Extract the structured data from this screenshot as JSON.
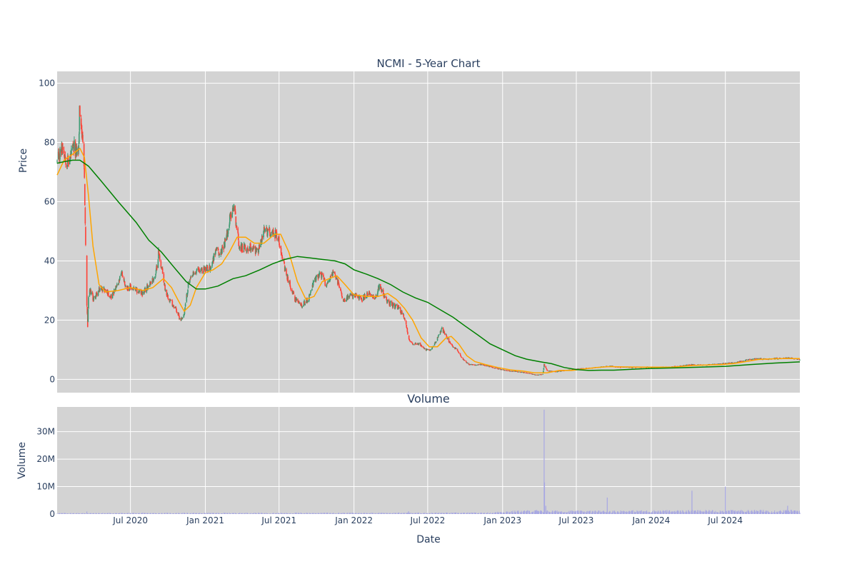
{
  "chart_data": [
    {
      "type": "candlestick",
      "title": "NCMI - 5-Year Chart",
      "xlabel": "",
      "ylabel": "Price",
      "ylim": [
        -4.5,
        104
      ],
      "xlim": [
        "2020-01-03",
        "2024-12-31"
      ],
      "yticks": [
        0,
        20,
        40,
        60,
        80,
        100
      ],
      "xticks": [
        "2020-07-01",
        "2021-01-01",
        "2021-07-01",
        "2022-01-01",
        "2022-07-01",
        "2023-01-01",
        "2023-07-01",
        "2024-01-01",
        "2024-07-01"
      ],
      "grid": true,
      "background": "#d3d3d3",
      "colors": {
        "up": "#3d9970",
        "down": "#ff4136",
        "ma_short": "#ffa500",
        "ma_long": "#008000"
      },
      "close_anchors": [
        [
          "2020-01-03",
          73
        ],
        [
          "2020-01-10",
          76
        ],
        [
          "2020-01-17",
          79
        ],
        [
          "2020-01-24",
          75
        ],
        [
          "2020-01-31",
          73
        ],
        [
          "2020-02-07",
          76
        ],
        [
          "2020-02-14",
          78
        ],
        [
          "2020-02-21",
          77
        ],
        [
          "2020-02-25",
          78
        ],
        [
          "2020-02-27",
          90
        ],
        [
          "2020-03-02",
          88
        ],
        [
          "2020-03-05",
          80
        ],
        [
          "2020-03-10",
          68
        ],
        [
          "2020-03-13",
          45
        ],
        [
          "2020-03-16",
          25
        ],
        [
          "2020-03-18",
          18
        ],
        [
          "2020-03-20",
          28
        ],
        [
          "2020-03-25",
          30
        ],
        [
          "2020-04-01",
          27
        ],
        [
          "2020-04-10",
          29
        ],
        [
          "2020-04-20",
          31
        ],
        [
          "2020-05-01",
          30
        ],
        [
          "2020-05-15",
          28
        ],
        [
          "2020-06-01",
          32
        ],
        [
          "2020-06-10",
          36
        ],
        [
          "2020-06-20",
          31
        ],
        [
          "2020-07-01",
          31
        ],
        [
          "2020-07-15",
          30
        ],
        [
          "2020-08-01",
          29
        ],
        [
          "2020-08-15",
          32
        ],
        [
          "2020-09-01",
          35
        ],
        [
          "2020-09-08",
          43
        ],
        [
          "2020-09-15",
          38
        ],
        [
          "2020-09-25",
          30
        ],
        [
          "2020-10-05",
          27
        ],
        [
          "2020-10-20",
          24
        ],
        [
          "2020-11-01",
          20
        ],
        [
          "2020-11-10",
          22
        ],
        [
          "2020-11-20",
          32
        ],
        [
          "2020-12-01",
          35
        ],
        [
          "2020-12-15",
          37
        ],
        [
          "2021-01-01",
          37
        ],
        [
          "2021-01-15",
          38
        ],
        [
          "2021-01-27",
          44
        ],
        [
          "2021-02-05",
          42
        ],
        [
          "2021-02-20",
          47
        ],
        [
          "2021-03-05",
          56
        ],
        [
          "2021-03-12",
          59
        ],
        [
          "2021-03-25",
          45
        ],
        [
          "2021-04-10",
          44
        ],
        [
          "2021-04-25",
          45
        ],
        [
          "2021-05-10",
          43
        ],
        [
          "2021-05-25",
          50
        ],
        [
          "2021-06-10",
          50
        ],
        [
          "2021-06-25",
          49
        ],
        [
          "2021-07-05",
          45
        ],
        [
          "2021-07-15",
          37
        ],
        [
          "2021-07-25",
          33
        ],
        [
          "2021-08-10",
          27
        ],
        [
          "2021-08-25",
          25
        ],
        [
          "2021-09-10",
          27
        ],
        [
          "2021-09-25",
          33
        ],
        [
          "2021-10-10",
          36
        ],
        [
          "2021-10-25",
          32
        ],
        [
          "2021-11-10",
          36
        ],
        [
          "2021-11-25",
          32
        ],
        [
          "2021-12-05",
          27
        ],
        [
          "2021-12-20",
          28
        ],
        [
          "2022-01-05",
          28
        ],
        [
          "2022-01-20",
          27
        ],
        [
          "2022-02-05",
          29
        ],
        [
          "2022-02-20",
          27
        ],
        [
          "2022-03-05",
          32
        ],
        [
          "2022-03-20",
          27
        ],
        [
          "2022-04-05",
          25
        ],
        [
          "2022-04-20",
          24
        ],
        [
          "2022-05-05",
          21
        ],
        [
          "2022-05-15",
          14
        ],
        [
          "2022-05-25",
          12
        ],
        [
          "2022-06-10",
          12
        ],
        [
          "2022-06-25",
          10
        ],
        [
          "2022-07-10",
          10
        ],
        [
          "2022-07-25",
          14
        ],
        [
          "2022-08-05",
          17
        ],
        [
          "2022-08-15",
          15
        ],
        [
          "2022-08-25",
          12
        ],
        [
          "2022-09-10",
          10
        ],
        [
          "2022-09-25",
          7
        ],
        [
          "2022-10-10",
          5
        ],
        [
          "2022-10-25",
          5
        ],
        [
          "2022-11-10",
          5
        ],
        [
          "2022-11-25",
          4.5
        ],
        [
          "2022-12-10",
          4
        ],
        [
          "2022-12-25",
          3.5
        ],
        [
          "2023-01-10",
          3
        ],
        [
          "2023-01-25",
          2.8
        ],
        [
          "2023-02-10",
          2.6
        ],
        [
          "2023-02-25",
          2.3
        ],
        [
          "2023-03-10",
          2
        ],
        [
          "2023-03-25",
          1.5
        ],
        [
          "2023-04-10",
          1.8
        ],
        [
          "2023-04-13",
          5
        ],
        [
          "2023-04-20",
          3
        ],
        [
          "2023-05-10",
          2.6
        ],
        [
          "2023-06-01",
          3
        ],
        [
          "2023-07-01",
          3.5
        ],
        [
          "2023-08-01",
          3.8
        ],
        [
          "2023-09-01",
          4.2
        ],
        [
          "2023-09-20",
          4.5
        ],
        [
          "2023-10-15",
          4.2
        ],
        [
          "2023-11-15",
          4.1
        ],
        [
          "2023-12-15",
          4.2
        ],
        [
          "2024-01-15",
          4.1
        ],
        [
          "2024-02-15",
          4.2
        ],
        [
          "2024-03-15",
          4.6
        ],
        [
          "2024-04-10",
          5
        ],
        [
          "2024-05-10",
          4.8
        ],
        [
          "2024-06-10",
          5.2
        ],
        [
          "2024-07-01",
          5.4
        ],
        [
          "2024-07-25",
          5.6
        ],
        [
          "2024-08-20",
          6.5
        ],
        [
          "2024-09-20",
          7
        ],
        [
          "2024-10-20",
          6.9
        ],
        [
          "2024-11-20",
          7.2
        ],
        [
          "2024-12-10",
          7.1
        ],
        [
          "2024-12-31",
          6.8
        ]
      ],
      "ma_short": [
        [
          "2020-01-03",
          69
        ],
        [
          "2020-01-20",
          74
        ],
        [
          "2020-02-10",
          76
        ],
        [
          "2020-02-28",
          78
        ],
        [
          "2020-03-10",
          75
        ],
        [
          "2020-03-20",
          62
        ],
        [
          "2020-03-31",
          45
        ],
        [
          "2020-04-15",
          32
        ],
        [
          "2020-05-01",
          29.5
        ],
        [
          "2020-06-01",
          30
        ],
        [
          "2020-07-01",
          31
        ],
        [
          "2020-08-01",
          30
        ],
        [
          "2020-08-25",
          31
        ],
        [
          "2020-09-20",
          34
        ],
        [
          "2020-10-10",
          31
        ],
        [
          "2020-10-25",
          27
        ],
        [
          "2020-11-10",
          23
        ],
        [
          "2020-11-25",
          25
        ],
        [
          "2020-12-10",
          31
        ],
        [
          "2021-01-01",
          36
        ],
        [
          "2021-01-20",
          37
        ],
        [
          "2021-02-10",
          39
        ],
        [
          "2021-03-01",
          43
        ],
        [
          "2021-03-20",
          48
        ],
        [
          "2021-04-10",
          48
        ],
        [
          "2021-05-01",
          46
        ],
        [
          "2021-05-25",
          46
        ],
        [
          "2021-06-20",
          49
        ],
        [
          "2021-07-05",
          49
        ],
        [
          "2021-07-25",
          43
        ],
        [
          "2021-08-15",
          33
        ],
        [
          "2021-09-05",
          27
        ],
        [
          "2021-09-25",
          28
        ],
        [
          "2021-10-15",
          33
        ],
        [
          "2021-11-01",
          34
        ],
        [
          "2021-11-20",
          35
        ],
        [
          "2021-12-10",
          32
        ],
        [
          "2022-01-01",
          28.5
        ],
        [
          "2022-02-01",
          28
        ],
        [
          "2022-03-01",
          28
        ],
        [
          "2022-03-25",
          29
        ],
        [
          "2022-04-15",
          27
        ],
        [
          "2022-05-05",
          24
        ],
        [
          "2022-05-25",
          20
        ],
        [
          "2022-06-15",
          14
        ],
        [
          "2022-07-05",
          11
        ],
        [
          "2022-07-25",
          11
        ],
        [
          "2022-08-15",
          14
        ],
        [
          "2022-08-28",
          14.5
        ],
        [
          "2022-09-15",
          12
        ],
        [
          "2022-10-05",
          8
        ],
        [
          "2022-10-25",
          6
        ],
        [
          "2022-11-20",
          5
        ],
        [
          "2022-12-20",
          4
        ],
        [
          "2023-01-20",
          3.2
        ],
        [
          "2023-02-20",
          2.8
        ],
        [
          "2023-03-20",
          2.2
        ],
        [
          "2023-04-20",
          2.2
        ],
        [
          "2023-05-20",
          3
        ],
        [
          "2023-06-20",
          3
        ],
        [
          "2023-07-20",
          3.5
        ],
        [
          "2023-08-20",
          4
        ],
        [
          "2023-09-20",
          4.3
        ],
        [
          "2023-10-20",
          4.2
        ],
        [
          "2023-12-20",
          4.1
        ],
        [
          "2024-02-20",
          4.1
        ],
        [
          "2024-04-20",
          4.7
        ],
        [
          "2024-06-20",
          5
        ],
        [
          "2024-07-20",
          5.3
        ],
        [
          "2024-08-20",
          6
        ],
        [
          "2024-09-20",
          6.7
        ],
        [
          "2024-10-20",
          6.9
        ],
        [
          "2024-11-20",
          7
        ],
        [
          "2024-12-31",
          7
        ]
      ],
      "ma_long": [
        [
          "2020-01-03",
          73
        ],
        [
          "2020-01-20",
          73.5
        ],
        [
          "2020-02-10",
          74
        ],
        [
          "2020-02-28",
          74
        ],
        [
          "2020-03-20",
          72
        ],
        [
          "2020-04-20",
          67
        ],
        [
          "2020-06-01",
          60
        ],
        [
          "2020-07-15",
          53
        ],
        [
          "2020-08-15",
          47
        ],
        [
          "2020-09-15",
          43
        ],
        [
          "2020-10-15",
          38
        ],
        [
          "2020-11-15",
          33
        ],
        [
          "2020-12-10",
          30.5
        ],
        [
          "2021-01-01",
          30.5
        ],
        [
          "2021-02-01",
          31.5
        ],
        [
          "2021-03-10",
          34
        ],
        [
          "2021-04-10",
          35
        ],
        [
          "2021-05-15",
          37
        ],
        [
          "2021-06-15",
          39
        ],
        [
          "2021-07-15",
          40.5
        ],
        [
          "2021-08-15",
          41.5
        ],
        [
          "2021-09-15",
          41
        ],
        [
          "2021-10-15",
          40.5
        ],
        [
          "2021-11-15",
          40
        ],
        [
          "2021-12-10",
          39
        ],
        [
          "2022-01-01",
          37
        ],
        [
          "2022-02-01",
          35.5
        ],
        [
          "2022-03-01",
          34
        ],
        [
          "2022-04-01",
          32
        ],
        [
          "2022-05-01",
          29.5
        ],
        [
          "2022-06-01",
          27.5
        ],
        [
          "2022-07-01",
          26
        ],
        [
          "2022-08-01",
          23.5
        ],
        [
          "2022-09-01",
          21
        ],
        [
          "2022-10-01",
          18
        ],
        [
          "2022-11-01",
          15
        ],
        [
          "2022-12-01",
          12
        ],
        [
          "2023-01-01",
          10
        ],
        [
          "2023-02-01",
          8
        ],
        [
          "2023-03-01",
          6.8
        ],
        [
          "2023-04-01",
          6
        ],
        [
          "2023-05-01",
          5.3
        ],
        [
          "2023-06-01",
          4
        ],
        [
          "2023-07-01",
          3.3
        ],
        [
          "2023-08-01",
          3
        ],
        [
          "2023-09-01",
          3.1
        ],
        [
          "2023-10-01",
          3.1
        ],
        [
          "2023-11-01",
          3.3
        ],
        [
          "2024-01-01",
          3.7
        ],
        [
          "2024-03-01",
          3.9
        ],
        [
          "2024-05-01",
          4.1
        ],
        [
          "2024-07-01",
          4.4
        ],
        [
          "2024-09-01",
          5
        ],
        [
          "2024-11-01",
          5.5
        ],
        [
          "2024-12-31",
          5.9
        ]
      ]
    },
    {
      "type": "bar",
      "title": "Volume",
      "xlabel": "Date",
      "ylabel": "Volume",
      "ylim": [
        0,
        39000000
      ],
      "yticks": [
        0,
        10000000,
        20000000,
        30000000
      ],
      "ytick_labels": [
        "0",
        "10M",
        "20M",
        "30M"
      ],
      "xticks": [
        "2020-07-01",
        "2021-01-01",
        "2021-07-01",
        "2022-01-01",
        "2022-07-01",
        "2023-01-01",
        "2023-07-01",
        "2024-01-01",
        "2024-07-01"
      ],
      "xtick_labels": [
        "Jul 2020",
        "Jan 2021",
        "Jul 2021",
        "Jan 2022",
        "Jul 2022",
        "Jan 2023",
        "Jul 2023",
        "Jan 2024",
        "Jul 2024"
      ],
      "grid": true,
      "background": "#d3d3d3",
      "bar_color": "#a7a7e3",
      "volume_spikes": [
        [
          "2020-03-16",
          900000
        ],
        [
          "2022-05-15",
          1000000
        ],
        [
          "2023-03-25",
          1500000
        ],
        [
          "2023-04-13",
          38000000
        ],
        [
          "2023-04-14",
          11500000
        ],
        [
          "2023-04-17",
          3000000
        ],
        [
          "2023-09-15",
          6000000
        ],
        [
          "2024-04-10",
          8500000
        ],
        [
          "2024-07-01",
          10000000
        ],
        [
          "2024-12-01",
          3000000
        ]
      ],
      "base_volume_levels": [
        [
          "2020-01-03",
          250000
        ],
        [
          "2022-12-01",
          350000
        ],
        [
          "2023-01-01",
          700000
        ],
        [
          "2023-03-01",
          900000
        ],
        [
          "2023-07-01",
          800000
        ],
        [
          "2024-01-01",
          900000
        ],
        [
          "2024-12-31",
          1000000
        ]
      ]
    }
  ]
}
